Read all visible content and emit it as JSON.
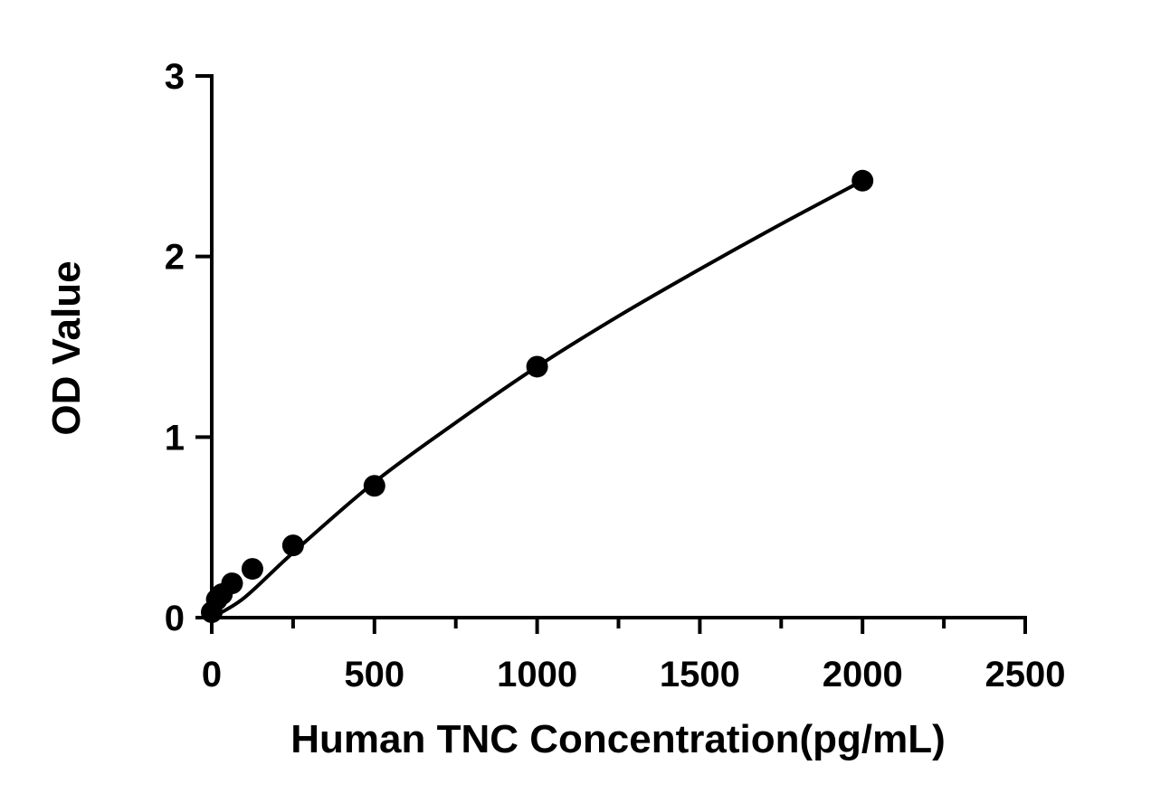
{
  "chart_data": {
    "type": "scatter",
    "xlabel": "Human TNC Concentration(pg/mL)",
    "ylabel": "OD Value",
    "xlim": [
      0,
      2500
    ],
    "ylim": [
      0,
      3
    ],
    "x_ticks": [
      0,
      500,
      1000,
      1500,
      2000,
      2500
    ],
    "y_ticks": [
      0,
      1,
      2,
      3
    ],
    "x_minor_ticks": [
      250,
      750,
      1250,
      1750,
      2250
    ],
    "grid": false,
    "series": [
      {
        "points": [
          {
            "x": 0,
            "y": 0.03
          },
          {
            "x": 15.6,
            "y": 0.1
          },
          {
            "x": 31.25,
            "y": 0.13
          },
          {
            "x": 62.5,
            "y": 0.19
          },
          {
            "x": 125,
            "y": 0.27
          },
          {
            "x": 250,
            "y": 0.4
          },
          {
            "x": 500,
            "y": 0.73
          },
          {
            "x": 1000,
            "y": 1.39
          },
          {
            "x": 2000,
            "y": 2.42
          }
        ],
        "fit_curve": [
          [
            0,
            0.0
          ],
          [
            100,
            0.11
          ],
          [
            250,
            0.36
          ],
          [
            500,
            0.75
          ],
          [
            750,
            1.08
          ],
          [
            1000,
            1.39
          ],
          [
            1250,
            1.67
          ],
          [
            1500,
            1.93
          ],
          [
            1750,
            2.18
          ],
          [
            2000,
            2.42
          ]
        ],
        "marker_color": "#000000"
      }
    ]
  }
}
